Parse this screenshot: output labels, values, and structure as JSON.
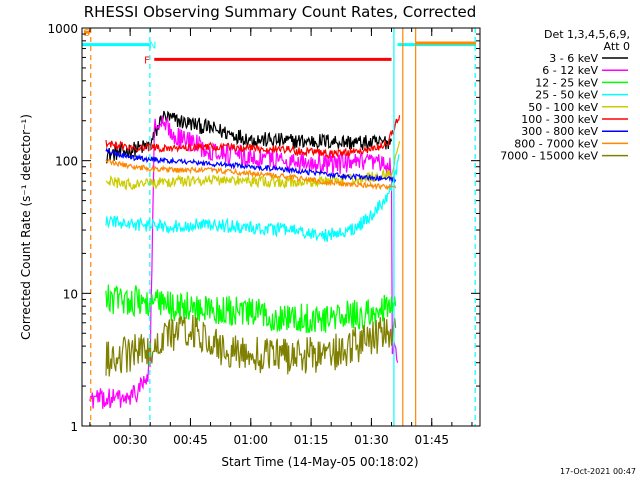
{
  "chart_data": {
    "type": "line",
    "title": "RHESSI Observing Summary Count Rates, Corrected",
    "xlabel": "Start Time (14-May-05 00:18:02)",
    "ylabel": "Corrected Count Rate (s⁻¹ detector⁻¹)",
    "yscale": "log",
    "ylim": [
      1,
      1000
    ],
    "xlim_min": [
      18.03,
      117.0
    ],
    "y_ticks": [
      "1",
      "10",
      "100",
      "1000"
    ],
    "x_ticks": [
      {
        "label": "00:30",
        "min": 30
      },
      {
        "label": "00:45",
        "min": 45
      },
      {
        "label": "01:00",
        "min": 60
      },
      {
        "label": "01:15",
        "min": 75
      },
      {
        "label": "01:30",
        "min": 90
      },
      {
        "label": "01:45",
        "min": 105
      }
    ],
    "legend_header": [
      "Det 1,3,4,5,6,9,",
      "Att 0"
    ],
    "legend_position": "right",
    "series": [
      {
        "name": "3 - 6 keV",
        "color": "#000000",
        "points": [
          [
            24,
            110
          ],
          [
            30,
            120
          ],
          [
            35,
            130
          ],
          [
            38,
            215
          ],
          [
            42,
            200
          ],
          [
            50,
            175
          ],
          [
            60,
            145
          ],
          [
            70,
            140
          ],
          [
            80,
            140
          ],
          [
            90,
            135
          ],
          [
            95,
            140
          ]
        ],
        "noise": 0.06
      },
      {
        "name": "6 - 12 keV",
        "color": "#ff00ff",
        "points": [
          [
            20,
            1.6
          ],
          [
            27,
            1.6
          ],
          [
            30,
            1.6
          ],
          [
            34,
            2.2
          ],
          [
            35,
            3.0
          ],
          [
            36,
            180
          ],
          [
            38,
            185
          ],
          [
            42,
            150
          ],
          [
            50,
            120
          ],
          [
            60,
            105
          ],
          [
            70,
            100
          ],
          [
            80,
            95
          ],
          [
            90,
            95
          ],
          [
            95,
            90
          ],
          [
            95.2,
            4
          ],
          [
            96.5,
            3
          ]
        ],
        "noise": 0.08
      },
      {
        "name": "12 - 25 keV",
        "color": "#00ff00",
        "points": [
          [
            24,
            9
          ],
          [
            30,
            9
          ],
          [
            40,
            8
          ],
          [
            50,
            7.5
          ],
          [
            60,
            7
          ],
          [
            70,
            6.5
          ],
          [
            80,
            6.5
          ],
          [
            90,
            7
          ],
          [
            96,
            8
          ]
        ],
        "noise": 0.12
      },
      {
        "name": "25 - 50 keV",
        "color": "#00ffff",
        "points": [
          [
            24,
            35
          ],
          [
            30,
            33
          ],
          [
            40,
            32
          ],
          [
            50,
            33
          ],
          [
            60,
            31
          ],
          [
            70,
            30
          ],
          [
            78,
            27
          ],
          [
            85,
            30
          ],
          [
            90,
            38
          ],
          [
            94,
            55
          ],
          [
            96,
            80
          ],
          [
            97,
            110
          ]
        ],
        "noise": 0.05
      },
      {
        "name": "50 - 100 keV",
        "color": "#cccc00",
        "points": [
          [
            24,
            70
          ],
          [
            30,
            66
          ],
          [
            40,
            69
          ],
          [
            50,
            72
          ],
          [
            60,
            70
          ],
          [
            70,
            68
          ],
          [
            80,
            70
          ],
          [
            90,
            75
          ],
          [
            95,
            80
          ],
          [
            97,
            140
          ]
        ],
        "noise": 0.04
      },
      {
        "name": "100 - 300 keV",
        "color": "#ff0000",
        "points": [
          [
            24,
            135
          ],
          [
            30,
            125
          ],
          [
            38,
            125
          ],
          [
            50,
            128
          ],
          [
            60,
            125
          ],
          [
            70,
            120
          ],
          [
            80,
            112
          ],
          [
            90,
            120
          ],
          [
            94,
            135
          ],
          [
            97,
            220
          ]
        ],
        "noise": 0.03
      },
      {
        "name": "300 - 800 keV",
        "color": "#0000ff",
        "points": [
          [
            24,
            120
          ],
          [
            30,
            105
          ],
          [
            40,
            100
          ],
          [
            50,
            95
          ],
          [
            60,
            90
          ],
          [
            70,
            85
          ],
          [
            80,
            78
          ],
          [
            90,
            74
          ],
          [
            96,
            72
          ]
        ],
        "noise": 0.02
      },
      {
        "name": "800 - 7000 keV",
        "color": "#ff8800",
        "points": [
          [
            24,
            100
          ],
          [
            30,
            90
          ],
          [
            40,
            85
          ],
          [
            50,
            85
          ],
          [
            60,
            80
          ],
          [
            70,
            75
          ],
          [
            80,
            68
          ],
          [
            90,
            65
          ],
          [
            96,
            62
          ]
        ],
        "noise": 0.02
      },
      {
        "name": "7000 - 15000 keV",
        "color": "#808000",
        "points": [
          [
            24,
            3.2
          ],
          [
            30,
            3.5
          ],
          [
            35,
            3.8
          ],
          [
            40,
            5.0
          ],
          [
            45,
            5.5
          ],
          [
            50,
            4.0
          ],
          [
            60,
            3.5
          ],
          [
            70,
            3.3
          ],
          [
            80,
            3.5
          ],
          [
            90,
            4.5
          ],
          [
            96,
            5.5
          ]
        ],
        "noise": 0.14
      }
    ],
    "flag_bars": [
      {
        "label": "S",
        "color": "#ff8800",
        "y": 930,
        "x": [
          18.5,
          20.0
        ],
        "label_min": 19.2
      },
      {
        "label": "N",
        "color": "#00ffff",
        "y": 750,
        "x": [
          18.1,
          34.9
        ],
        "label_min": 35.6
      },
      {
        "label": "",
        "color": "#00ffff",
        "y": 750,
        "x": [
          96.5,
          116.0
        ],
        "label_min": null
      },
      {
        "label": "F",
        "color": "#ff0000",
        "y": 580,
        "x": [
          36.0,
          95.0
        ],
        "label_min": 34.2
      },
      {
        "label": "",
        "color": "#ff8800",
        "y": 770,
        "x": [
          101.0,
          116.0
        ],
        "label_min": null
      }
    ],
    "vertical_markers": [
      {
        "color": "#ff8800",
        "min": 20.2,
        "dashed": true
      },
      {
        "color": "#00ffff",
        "min": 34.9,
        "dashed": true
      },
      {
        "color": "#00ffff",
        "min": 95.6,
        "dashed": false
      },
      {
        "color": "#ff8800",
        "min": 97.8,
        "dashed": false
      },
      {
        "color": "#ff8800",
        "min": 101.0,
        "dashed": false
      },
      {
        "color": "#00ffff",
        "min": 115.8,
        "dashed": true
      }
    ]
  },
  "footer": {
    "timestamp": "17-Oct-2021 00:47"
  }
}
